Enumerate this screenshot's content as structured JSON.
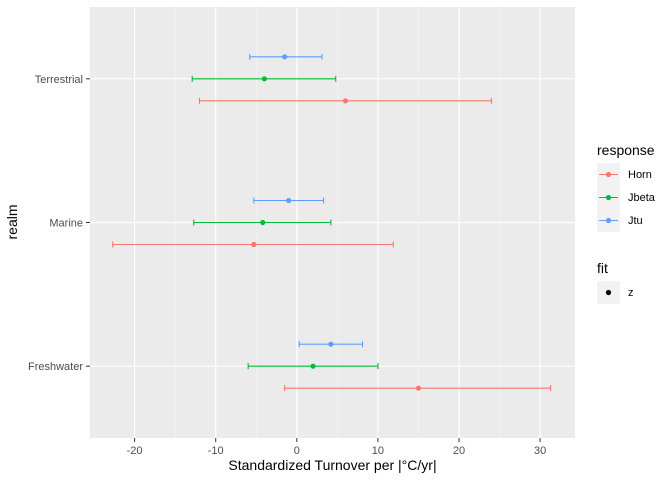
{
  "chart_data": {
    "type": "scatter",
    "subtype": "pointrange-horizontal",
    "title": "",
    "xlabel": "Standardized Turnover per |°C/yr|",
    "ylabel": "realm",
    "xlim": [
      -25.5,
      34.3
    ],
    "x_ticks": [
      -20,
      -10,
      0,
      10,
      20,
      30
    ],
    "categories": [
      "Freshwater",
      "Marine",
      "Terrestrial"
    ],
    "grid": true,
    "legend_position": "right",
    "legend": {
      "color_title": "response",
      "shape_title": "fit",
      "shape_items": [
        "z"
      ]
    },
    "series": [
      {
        "name": "Horn",
        "color": "#F8766D",
        "points": [
          {
            "category": "Terrestrial",
            "x": 6.0,
            "low": -12.0,
            "high": 24.0
          },
          {
            "category": "Marine",
            "x": -5.3,
            "low": -22.7,
            "high": 11.9
          },
          {
            "category": "Freshwater",
            "x": 15.0,
            "low": -1.5,
            "high": 31.3
          }
        ]
      },
      {
        "name": "Jbeta",
        "color": "#00BA38",
        "points": [
          {
            "category": "Terrestrial",
            "x": -4.0,
            "low": -12.9,
            "high": 4.8
          },
          {
            "category": "Marine",
            "x": -4.2,
            "low": -12.7,
            "high": 4.2
          },
          {
            "category": "Freshwater",
            "x": 2.0,
            "low": -6.0,
            "high": 10.0
          }
        ]
      },
      {
        "name": "Jtu",
        "color": "#619CFF",
        "points": [
          {
            "category": "Terrestrial",
            "x": -1.5,
            "low": -5.8,
            "high": 3.1
          },
          {
            "category": "Marine",
            "x": -1.0,
            "low": -5.3,
            "high": 3.3
          },
          {
            "category": "Freshwater",
            "x": 4.2,
            "low": 0.3,
            "high": 8.1
          }
        ]
      }
    ]
  }
}
